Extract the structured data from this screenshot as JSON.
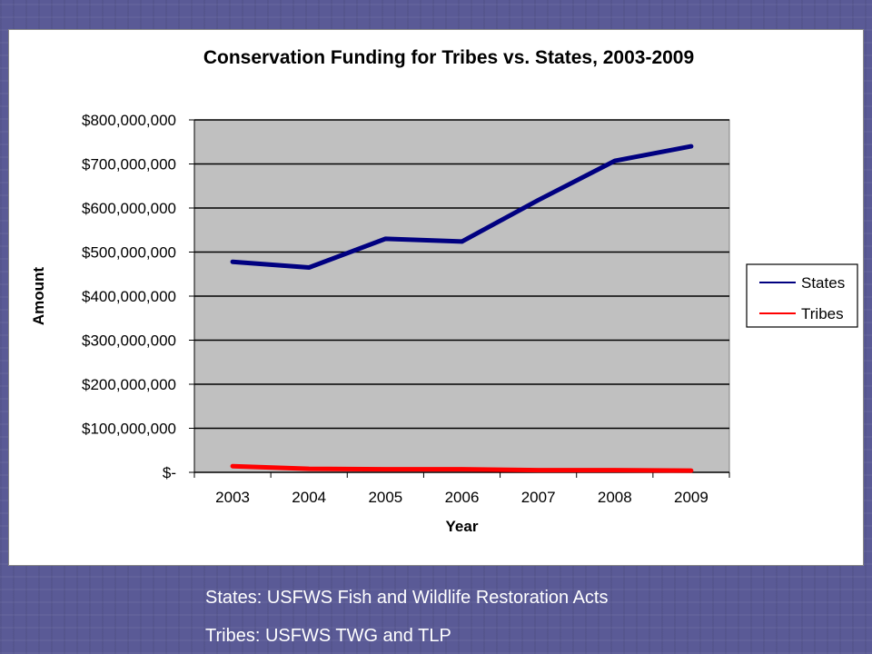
{
  "colors": {
    "background": "#5a5a96",
    "plot_area": "#c0c0c0",
    "gridline": "#000000",
    "states_line": "#000080",
    "tribes_line": "#ff0000"
  },
  "chart_data": {
    "type": "line",
    "title": "Conservation Funding for Tribes vs. States, 2003-2009",
    "xlabel": "Year",
    "ylabel": "Amount",
    "x": [
      "2003",
      "2004",
      "2005",
      "2006",
      "2007",
      "2008",
      "2009"
    ],
    "ylim": [
      0,
      800000000
    ],
    "yticks": [
      0,
      100000000,
      200000000,
      300000000,
      400000000,
      500000000,
      600000000,
      700000000,
      800000000
    ],
    "ytick_labels": [
      "$-",
      "$100,000,000",
      "$200,000,000",
      "$300,000,000",
      "$400,000,000",
      "$500,000,000",
      "$600,000,000",
      "$700,000,000",
      "$800,000,000"
    ],
    "grid": true,
    "legend_position": "right",
    "series": [
      {
        "name": "States",
        "color": "#000080",
        "values": [
          478000000,
          465000000,
          530000000,
          524000000,
          618000000,
          707000000,
          740000000
        ]
      },
      {
        "name": "Tribes",
        "color": "#ff0000",
        "values": [
          14000000,
          8000000,
          7000000,
          7000000,
          5000000,
          5000000,
          4000000
        ]
      }
    ]
  },
  "captions": {
    "states_source": "States: USFWS Fish and Wildlife Restoration Acts",
    "tribes_source": "Tribes: USFWS TWG and TLP"
  }
}
